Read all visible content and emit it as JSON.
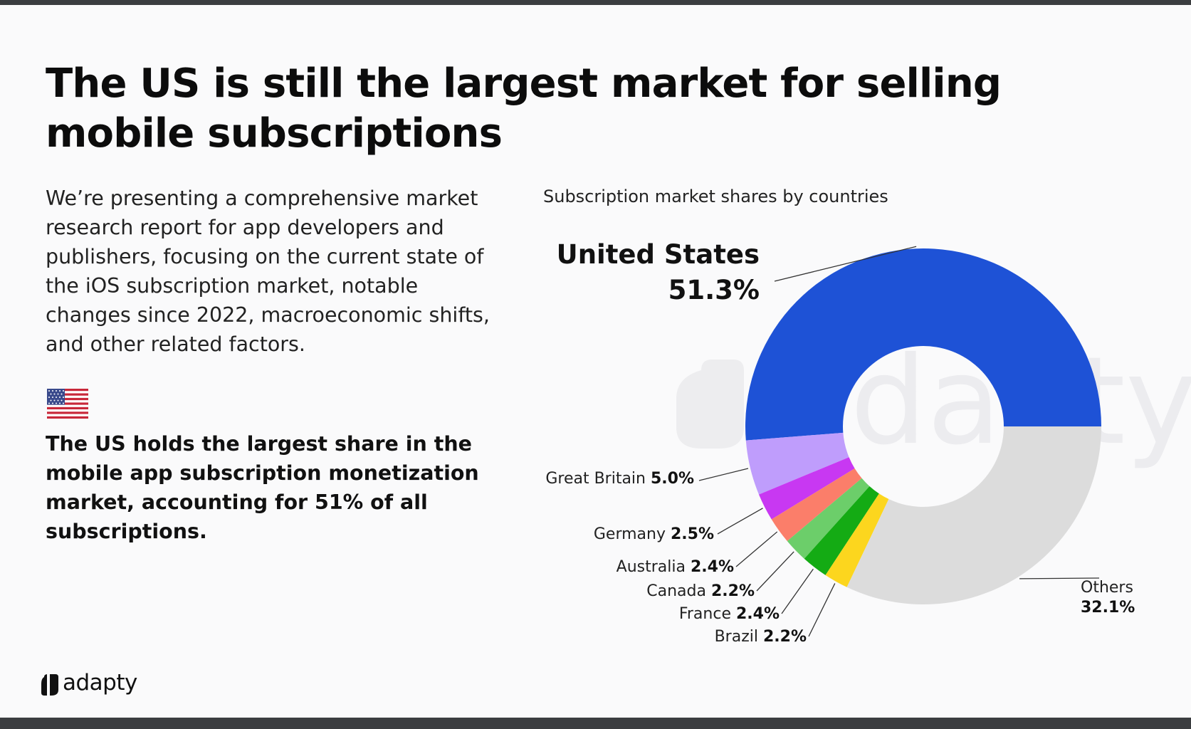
{
  "page": {
    "headline": "The US is still the largest market for selling mobile subscriptions",
    "intro": "We’re presenting a comprehensive market research report for app developers and publishers, focusing on the current state of the iOS subscription market, notable changes since 2022, macroeconomic shifts, and other related factors.",
    "flag_icon": "us-flag-icon",
    "highlight": "The US holds the largest share in the mobile app subscription monetization market, accounting for 51% of all subscriptions.",
    "logo_text": "adapty",
    "watermark_text": "adapty"
  },
  "chart_data": {
    "type": "pie",
    "donut": true,
    "title": "Subscription market shares by countries",
    "categories": [
      "United States",
      "Great Britain",
      "Germany",
      "Australia",
      "Canada",
      "France",
      "Brazil",
      "Others"
    ],
    "values": [
      51.3,
      5.0,
      2.5,
      2.4,
      2.2,
      2.4,
      2.2,
      32.1
    ],
    "value_labels": [
      "51.3%",
      "5.0%",
      "2.5%",
      "2.4%",
      "2.2%",
      "2.4%",
      "2.2%",
      "32.1%"
    ],
    "colors": [
      "#1e52d6",
      "#bf9dfc",
      "#c838f2",
      "#fb7e6a",
      "#6cce6a",
      "#14ab14",
      "#fcd61e",
      "#dcdcdc"
    ],
    "legend": "none",
    "grid": false
  }
}
